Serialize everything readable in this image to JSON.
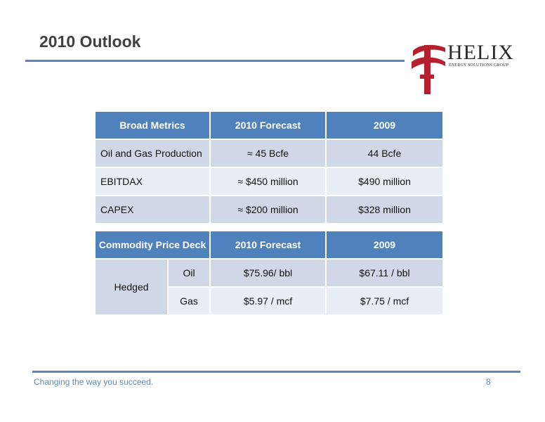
{
  "slide": {
    "title": "2010 Outlook"
  },
  "logo": {
    "word": "HELIX",
    "subtitle": "ENERGY SOLUTIONS GROUP",
    "brand_color": "#b5202e"
  },
  "metrics_table": {
    "headers": [
      "Broad Metrics",
      "2010 Forecast",
      "2009"
    ],
    "rows": [
      [
        "Oil and Gas Production",
        "≈ 45 Bcfe",
        "44 Bcfe"
      ],
      [
        "EBITDAX",
        "≈ $450 million",
        "$490 million"
      ],
      [
        "CAPEX",
        "≈ $200 million",
        "$328 million"
      ]
    ]
  },
  "price_table": {
    "headers": [
      "Commodity Price Deck",
      "2010 Forecast",
      "2009"
    ],
    "group_label": "Hedged",
    "rows": [
      [
        "Oil",
        "$75.96/ bbl",
        "$67.11 / bbl"
      ],
      [
        "Gas",
        "$5.97 / mcf",
        "$7.75 / mcf"
      ]
    ]
  },
  "footer": {
    "tagline": "Changing the way you succeed.",
    "page_number": "8"
  },
  "colors": {
    "header_blue": "#4f81bd",
    "row_dark": "#d0d8e8",
    "row_light": "#e9edf4",
    "rule_blue": "#5b88b2"
  }
}
